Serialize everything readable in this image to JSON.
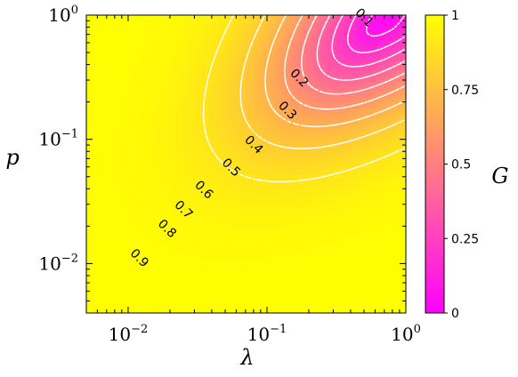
{
  "chart_data": {
    "type": "heatmap",
    "subtype": "filled contour map with dotted contour lines",
    "xlabel": "λ",
    "ylabel": "p",
    "x_scale": "log",
    "y_scale": "log",
    "xlim": [
      0.005,
      1
    ],
    "ylim": [
      0.004,
      1
    ],
    "x_ticks": [
      {
        "value": 0.01,
        "base": "10",
        "exp": "−2"
      },
      {
        "value": 0.1,
        "base": "10",
        "exp": "−1"
      },
      {
        "value": 1,
        "base": "10",
        "exp": "0"
      }
    ],
    "y_ticks": [
      {
        "value": 0.01,
        "base": "10",
        "exp": "−2"
      },
      {
        "value": 0.1,
        "base": "10",
        "exp": "−1"
      },
      {
        "value": 1,
        "base": "10",
        "exp": "0"
      }
    ],
    "colorbar": {
      "label": "G",
      "range": [
        0,
        1
      ],
      "ticks": [
        "0",
        "0.25",
        "0.5",
        "0.75",
        "1"
      ],
      "colormap": "spring",
      "low_color": "#ff00ff",
      "high_color": "#ffff00"
    },
    "contour_line_color": "#ffffff",
    "minimum": {
      "lambda": 0.7,
      "p": 0.9,
      "G": 0.05
    },
    "contour_labels": [
      {
        "text": "0.1",
        "lambda": 0.5,
        "p": 0.95
      },
      {
        "text": "0.2",
        "lambda": 0.17,
        "p": 0.31
      },
      {
        "text": "0.3",
        "lambda": 0.14,
        "p": 0.17
      },
      {
        "text": "0.4",
        "lambda": 0.08,
        "p": 0.09
      },
      {
        "text": "0.5",
        "lambda": 0.055,
        "p": 0.059
      },
      {
        "text": "0.6",
        "lambda": 0.035,
        "p": 0.039
      },
      {
        "text": "0.7",
        "lambda": 0.025,
        "p": 0.027
      },
      {
        "text": "0.8",
        "lambda": 0.019,
        "p": 0.019
      },
      {
        "text": "0.9",
        "lambda": 0.012,
        "p": 0.011
      }
    ]
  }
}
